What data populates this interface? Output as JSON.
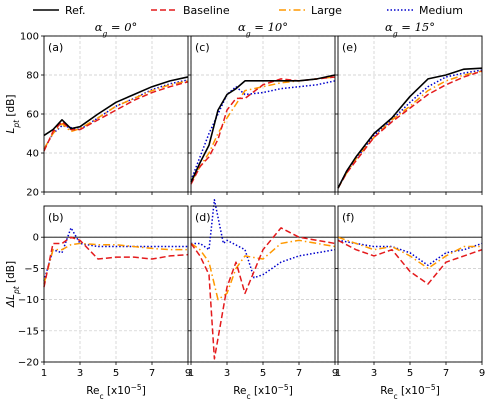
{
  "chart_data": {
    "type": "line",
    "legend": {
      "placement": "top",
      "entries": [
        {
          "key": "ref",
          "label": "Ref.",
          "color": "#000000",
          "dash": "solid"
        },
        {
          "key": "baseline",
          "label": "Baseline",
          "color": "#e41a1c",
          "dash": "dashed"
        },
        {
          "key": "large",
          "label": "Large",
          "color": "#ff9900",
          "dash": "dashdot"
        },
        {
          "key": "medium",
          "label": "Medium",
          "color": "#0000cc",
          "dash": "dotted"
        }
      ]
    },
    "columns": [
      {
        "title_symbol": "α",
        "title_sub": "g",
        "title_value": " = 0°"
      },
      {
        "title_symbol": "α",
        "title_sub": "g",
        "title_value": " = 10°"
      },
      {
        "title_symbol": "α",
        "title_sub": "g",
        "title_value": " = 15°"
      }
    ],
    "x_axis": {
      "label_main": "Re",
      "label_sub": "c",
      "label_unit": " [x10",
      "label_exp": "−5",
      "label_close": "]",
      "range": [
        1,
        9
      ],
      "ticks": [
        "1",
        "3",
        "5",
        "7",
        "9"
      ]
    },
    "rows": [
      {
        "ylabel_main": "L",
        "ylabel_sub": "pt",
        "ylabel_unit": " [dB]",
        "ylim": [
          20,
          100
        ],
        "yticks": [
          20,
          40,
          60,
          80,
          100
        ],
        "hline": null
      },
      {
        "ylabel_main": "ΔL",
        "ylabel_sub": "pt",
        "ylabel_unit": " [dB]",
        "ylim": [
          -20,
          5
        ],
        "yticks": [
          -20,
          -15,
          -10,
          -5,
          0
        ],
        "hline": 0
      }
    ],
    "panels": [
      {
        "label": "(a)",
        "row": 0,
        "col": 0,
        "series": {
          "ref": [
            [
              1,
              49
            ],
            [
              1.5,
              52
            ],
            [
              2,
              57
            ],
            [
              2.5,
              52.5
            ],
            [
              3,
              53.5
            ],
            [
              4,
              60
            ],
            [
              5,
              66
            ],
            [
              6,
              70
            ],
            [
              7,
              74
            ],
            [
              8,
              77
            ],
            [
              9,
              79
            ]
          ],
          "baseline": [
            [
              1,
              41
            ],
            [
              1.5,
              51
            ],
            [
              2,
              56
            ],
            [
              2.5,
              52
            ],
            [
              3,
              52
            ],
            [
              4,
              57
            ],
            [
              5,
              62
            ],
            [
              6,
              67
            ],
            [
              7,
              71
            ],
            [
              8,
              74
            ],
            [
              9,
              76.5
            ]
          ],
          "large": [
            [
              1,
              42
            ],
            [
              1.5,
              50
            ],
            [
              2,
              55
            ],
            [
              2.5,
              51
            ],
            [
              3,
              52.5
            ],
            [
              4,
              58
            ],
            [
              5,
              64
            ],
            [
              6,
              68
            ],
            [
              7,
              72
            ],
            [
              8,
              75
            ],
            [
              9,
              77
            ]
          ],
          "medium": [
            [
              1,
              42
            ],
            [
              1.5,
              50
            ],
            [
              2,
              54
            ],
            [
              2.5,
              53
            ],
            [
              3,
              52
            ],
            [
              4,
              58
            ],
            [
              5,
              64
            ],
            [
              6,
              68
            ],
            [
              7,
              72.5
            ],
            [
              8,
              75.5
            ],
            [
              9,
              77.5
            ]
          ]
        }
      },
      {
        "label": "(c)",
        "row": 0,
        "col": 1,
        "series": {
          "ref": [
            [
              1,
              25
            ],
            [
              1.5,
              35
            ],
            [
              2,
              44
            ],
            [
              2.5,
              62
            ],
            [
              3,
              70
            ],
            [
              3.5,
              73
            ],
            [
              4,
              77
            ],
            [
              5,
              77
            ],
            [
              6,
              77
            ],
            [
              7,
              77
            ],
            [
              8,
              78
            ],
            [
              9,
              80
            ]
          ],
          "baseline": [
            [
              1,
              24
            ],
            [
              1.5,
              33
            ],
            [
              2,
              38
            ],
            [
              2.5,
              47
            ],
            [
              3,
              62
            ],
            [
              3.5,
              68
            ],
            [
              4,
              68
            ],
            [
              5,
              75
            ],
            [
              6,
              78
            ],
            [
              7,
              77
            ],
            [
              8,
              78
            ],
            [
              9,
              79
            ]
          ],
          "large": [
            [
              1,
              25
            ],
            [
              1.5,
              33
            ],
            [
              2,
              40
            ],
            [
              2.5,
              50
            ],
            [
              3,
              58
            ],
            [
              3.5,
              65
            ],
            [
              4,
              72
            ],
            [
              5,
              74
            ],
            [
              6,
              76
            ],
            [
              7,
              77
            ],
            [
              8,
              78
            ],
            [
              9,
              79
            ]
          ],
          "medium": [
            [
              1,
              26
            ],
            [
              1.5,
              38
            ],
            [
              2,
              50
            ],
            [
              2.5,
              60
            ],
            [
              3,
              70
            ],
            [
              3.5,
              74
            ],
            [
              4,
              70
            ],
            [
              5,
              71
            ],
            [
              6,
              73
            ],
            [
              7,
              74
            ],
            [
              8,
              75
            ],
            [
              9,
              77
            ]
          ]
        }
      },
      {
        "label": "(e)",
        "row": 0,
        "col": 2,
        "series": {
          "ref": [
            [
              1,
              22
            ],
            [
              1.5,
              31
            ],
            [
              2,
              38
            ],
            [
              3,
              50
            ],
            [
              4,
              58
            ],
            [
              5,
              69
            ],
            [
              6,
              78
            ],
            [
              7,
              80
            ],
            [
              8,
              83
            ],
            [
              9,
              83.5
            ]
          ],
          "baseline": [
            [
              1,
              22
            ],
            [
              1.5,
              30
            ],
            [
              2,
              36
            ],
            [
              3,
              48
            ],
            [
              4,
              56
            ],
            [
              5,
              63
            ],
            [
              6,
              70
            ],
            [
              7,
              75
            ],
            [
              8,
              79
            ],
            [
              9,
              82
            ]
          ],
          "large": [
            [
              1,
              22
            ],
            [
              1.5,
              30
            ],
            [
              2,
              37
            ],
            [
              3,
              48
            ],
            [
              4,
              57
            ],
            [
              5,
              64
            ],
            [
              6,
              72
            ],
            [
              7,
              77
            ],
            [
              8,
              80
            ],
            [
              9,
              82
            ]
          ],
          "medium": [
            [
              1,
              22
            ],
            [
              1.5,
              31
            ],
            [
              2,
              37
            ],
            [
              3,
              49
            ],
            [
              4,
              57
            ],
            [
              5,
              66
            ],
            [
              6,
              74
            ],
            [
              7,
              79
            ],
            [
              8,
              81
            ],
            [
              9,
              82.5
            ]
          ]
        }
      },
      {
        "label": "(b)",
        "row": 1,
        "col": 0,
        "series": {
          "baseline": [
            [
              1,
              -8
            ],
            [
              1.5,
              -1
            ],
            [
              2,
              -1
            ],
            [
              2.5,
              0
            ],
            [
              3,
              -0.5
            ],
            [
              3.5,
              -2
            ],
            [
              4,
              -3.5
            ],
            [
              5,
              -3.2
            ],
            [
              6,
              -3.2
            ],
            [
              7,
              -3.5
            ],
            [
              8,
              -3
            ],
            [
              9,
              -2.8
            ]
          ],
          "large": [
            [
              1,
              -7.5
            ],
            [
              1.5,
              -2
            ],
            [
              2,
              -2
            ],
            [
              2.5,
              -1.2
            ],
            [
              3,
              -1
            ],
            [
              4,
              -1.2
            ],
            [
              5,
              -1.2
            ],
            [
              6,
              -1.5
            ],
            [
              7,
              -1.8
            ],
            [
              8,
              -2
            ],
            [
              9,
              -2
            ]
          ],
          "medium": [
            [
              1,
              -7
            ],
            [
              1.5,
              -2
            ],
            [
              2,
              -2.5
            ],
            [
              2.5,
              1.5
            ],
            [
              3,
              -1
            ],
            [
              4,
              -1.5
            ],
            [
              5,
              -1.5
            ],
            [
              6,
              -1.5
            ],
            [
              7,
              -1.5
            ],
            [
              8,
              -1.5
            ],
            [
              9,
              -1.5
            ]
          ]
        }
      },
      {
        "label": "(d)",
        "row": 1,
        "col": 1,
        "series": {
          "baseline": [
            [
              1,
              -1
            ],
            [
              1.5,
              -3
            ],
            [
              2,
              -6
            ],
            [
              2.3,
              -19.5
            ],
            [
              3,
              -8
            ],
            [
              3.5,
              -4
            ],
            [
              4,
              -9
            ],
            [
              5,
              -2
            ],
            [
              6,
              1.5
            ],
            [
              7,
              0
            ],
            [
              8,
              -0.5
            ],
            [
              9,
              -1
            ]
          ],
          "large": [
            [
              1,
              -1
            ],
            [
              1.5,
              -2
            ],
            [
              2,
              -4
            ],
            [
              2.5,
              -10
            ],
            [
              3,
              -9
            ],
            [
              3.5,
              -5
            ],
            [
              4,
              -3
            ],
            [
              5,
              -3.5
            ],
            [
              6,
              -1
            ],
            [
              7,
              -0.5
            ],
            [
              8,
              -1
            ],
            [
              9,
              -1.5
            ]
          ],
          "medium": [
            [
              1,
              -1
            ],
            [
              1.5,
              -1
            ],
            [
              2,
              -2
            ],
            [
              2.3,
              6
            ],
            [
              2.8,
              -1
            ],
            [
              3,
              -0.5
            ],
            [
              4,
              -2
            ],
            [
              4.5,
              -6.5
            ],
            [
              5,
              -6
            ],
            [
              6,
              -4
            ],
            [
              7,
              -3
            ],
            [
              8,
              -2.5
            ],
            [
              9,
              -2
            ]
          ]
        }
      },
      {
        "label": "(f)",
        "row": 1,
        "col": 2,
        "series": {
          "baseline": [
            [
              1,
              -0.5
            ],
            [
              2,
              -2
            ],
            [
              3,
              -3
            ],
            [
              4,
              -2
            ],
            [
              5,
              -5.5
            ],
            [
              6,
              -7.5
            ],
            [
              7,
              -4
            ],
            [
              8,
              -3
            ],
            [
              9,
              -2
            ]
          ],
          "large": [
            [
              1,
              0
            ],
            [
              2,
              -1
            ],
            [
              3,
              -2
            ],
            [
              4,
              -1.5
            ],
            [
              5,
              -3
            ],
            [
              6,
              -5
            ],
            [
              7,
              -3
            ],
            [
              8,
              -1.5
            ],
            [
              9,
              -1.5
            ]
          ],
          "medium": [
            [
              1,
              -0.5
            ],
            [
              2,
              -1
            ],
            [
              3,
              -1.5
            ],
            [
              4,
              -1.5
            ],
            [
              5,
              -2.5
            ],
            [
              6,
              -4.5
            ],
            [
              7,
              -2.5
            ],
            [
              8,
              -2
            ],
            [
              9,
              -1
            ]
          ]
        }
      }
    ]
  }
}
